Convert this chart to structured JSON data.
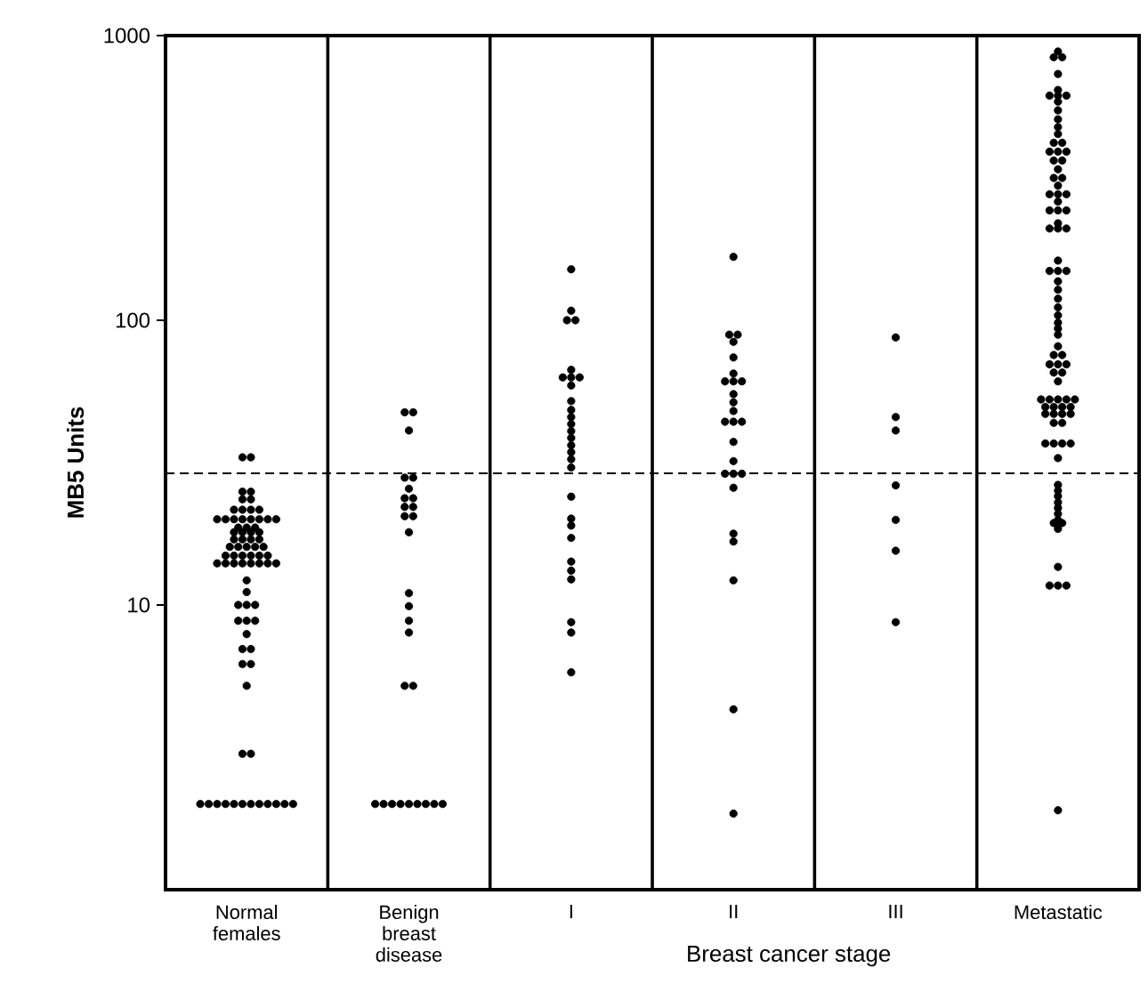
{
  "chart_data": {
    "type": "scatter",
    "xlabel": "Breast cancer stage",
    "ylabel": "MB5 Units",
    "log": "y",
    "marker": "circle",
    "categories": [
      "Normal females",
      "Benign breast disease",
      "I",
      "II",
      "III",
      "Metastatic"
    ],
    "ylim": [
      1,
      1000
    ],
    "yticks": [
      10,
      100,
      1000
    ],
    "ref_lines": [
      {
        "axis": "y",
        "value": 29,
        "line_style": "dashed",
        "color": "#000000"
      }
    ],
    "series": [
      {
        "color": "#000000",
        "x": [
          "Normal females",
          "Normal females",
          "Normal females",
          "Normal females",
          "Normal females",
          "Normal females",
          "Normal females",
          "Normal females",
          "Normal females",
          "Normal females",
          "Normal females",
          "Normal females",
          "Normal females",
          "Normal females",
          "Normal females",
          "Normal females",
          "Normal females",
          "Normal females",
          "Normal females",
          "Normal females",
          "Normal females",
          "Normal females",
          "Normal females",
          "Normal females",
          "Normal females",
          "Normal females",
          "Normal females",
          "Normal females",
          "Normal females",
          "Normal females",
          "Normal females",
          "Normal females",
          "Normal females",
          "Normal females",
          "Normal females",
          "Normal females",
          "Normal females",
          "Normal females",
          "Normal females",
          "Normal females",
          "Normal females",
          "Normal females",
          "Normal females",
          "Normal females",
          "Normal females",
          "Normal females",
          "Normal females",
          "Normal females",
          "Normal females",
          "Normal females",
          "Normal females",
          "Normal females",
          "Normal females",
          "Normal females",
          "Normal females",
          "Normal females",
          "Normal females",
          "Normal females",
          "Normal females",
          "Normal females",
          "Normal females",
          "Normal females",
          "Normal females",
          "Normal females",
          "Normal females",
          "Normal females",
          "Normal females",
          "Normal females",
          "Normal females",
          "Normal females",
          "Normal females",
          "Normal females",
          "Normal females",
          "Normal females",
          "Normal females",
          "Normal females"
        ],
        "values": [
          33,
          33,
          25,
          25,
          23.5,
          23.5,
          21.6,
          21.6,
          21.6,
          21.6,
          20,
          20,
          20,
          20,
          20,
          20,
          20,
          20,
          18.7,
          18.7,
          18.7,
          18,
          18,
          18,
          18,
          17,
          17,
          17,
          17,
          16,
          16,
          16,
          16,
          16,
          14.9,
          14.9,
          14.9,
          14.9,
          14.9,
          14.9,
          14,
          14,
          14,
          14,
          14,
          14,
          14,
          14,
          12.2,
          11.1,
          10,
          10,
          10,
          8.8,
          8.8,
          8.8,
          7.9,
          7,
          7,
          6.2,
          6.2,
          5.2,
          3,
          3,
          2,
          2,
          2,
          2,
          2,
          2,
          2,
          2,
          2,
          2,
          2,
          2
        ]
      },
      {
        "color": "#000000",
        "x": [
          "Benign breast disease",
          "Benign breast disease",
          "Benign breast disease",
          "Benign breast disease",
          "Benign breast disease",
          "Benign breast disease",
          "Benign breast disease",
          "Benign breast disease",
          "Benign breast disease",
          "Benign breast disease",
          "Benign breast disease",
          "Benign breast disease",
          "Benign breast disease",
          "Benign breast disease",
          "Benign breast disease",
          "Benign breast disease",
          "Benign breast disease",
          "Benign breast disease",
          "Benign breast disease",
          "Benign breast disease",
          "Benign breast disease",
          "Benign breast disease",
          "Benign breast disease",
          "Benign breast disease",
          "Benign breast disease",
          "Benign breast disease",
          "Benign breast disease",
          "Benign breast disease"
        ],
        "values": [
          47.5,
          47.5,
          41,
          28,
          28,
          25.6,
          23.7,
          23.7,
          22.1,
          22.1,
          20.5,
          20.5,
          18,
          11,
          9.9,
          8.8,
          8,
          5.2,
          5.2,
          2,
          2,
          2,
          2,
          2,
          2,
          2,
          2,
          2
        ]
      },
      {
        "color": "#000000",
        "x": [
          "I",
          "I",
          "I",
          "I",
          "I",
          "I",
          "I",
          "I",
          "I",
          "I",
          "I",
          "I",
          "I",
          "I",
          "I",
          "I",
          "I",
          "I",
          "I",
          "I",
          "I",
          "I",
          "I",
          "I",
          "I",
          "I",
          "I",
          "I",
          "I"
        ],
        "values": [
          151,
          108,
          100,
          100,
          67,
          63,
          63,
          63,
          59,
          52,
          48.4,
          45.7,
          43.2,
          40.8,
          38.6,
          36.4,
          34.4,
          32.5,
          30.4,
          24,
          20.1,
          19,
          17.2,
          14.2,
          13.2,
          12.3,
          8.7,
          8,
          5.8
        ]
      },
      {
        "color": "#000000",
        "x": [
          "II",
          "II",
          "II",
          "II",
          "II",
          "II",
          "II",
          "II",
          "II",
          "II",
          "II",
          "II",
          "II",
          "II",
          "II",
          "II",
          "II",
          "II",
          "II",
          "II",
          "II",
          "II",
          "II",
          "II",
          "II",
          "II"
        ],
        "values": [
          167,
          89,
          89,
          84,
          74,
          65,
          61,
          61,
          61,
          55,
          51.5,
          48,
          44,
          44,
          44,
          37.4,
          32,
          28.9,
          28.9,
          28.9,
          25.8,
          17.8,
          16.7,
          12.2,
          4.3,
          1.85
        ]
      },
      {
        "color": "#000000",
        "x": [
          "III",
          "III",
          "III",
          "III",
          "III",
          "III",
          "III"
        ],
        "values": [
          87,
          45.7,
          41,
          26.3,
          19.9,
          15.5,
          8.7
        ]
      },
      {
        "color": "#000000",
        "x": [
          "Metastatic",
          "Metastatic",
          "Metastatic",
          "Metastatic",
          "Metastatic",
          "Metastatic",
          "Metastatic",
          "Metastatic",
          "Metastatic",
          "Metastatic",
          "Metastatic",
          "Metastatic",
          "Metastatic",
          "Metastatic",
          "Metastatic",
          "Metastatic",
          "Metastatic",
          "Metastatic",
          "Metastatic",
          "Metastatic",
          "Metastatic",
          "Metastatic",
          "Metastatic",
          "Metastatic",
          "Metastatic",
          "Metastatic",
          "Metastatic",
          "Metastatic",
          "Metastatic",
          "Metastatic",
          "Metastatic",
          "Metastatic",
          "Metastatic",
          "Metastatic",
          "Metastatic",
          "Metastatic",
          "Metastatic",
          "Metastatic",
          "Metastatic",
          "Metastatic",
          "Metastatic",
          "Metastatic",
          "Metastatic",
          "Metastatic",
          "Metastatic",
          "Metastatic",
          "Metastatic",
          "Metastatic",
          "Metastatic",
          "Metastatic",
          "Metastatic",
          "Metastatic",
          "Metastatic",
          "Metastatic",
          "Metastatic",
          "Metastatic",
          "Metastatic",
          "Metastatic",
          "Metastatic",
          "Metastatic",
          "Metastatic",
          "Metastatic",
          "Metastatic",
          "Metastatic",
          "Metastatic",
          "Metastatic",
          "Metastatic",
          "Metastatic",
          "Metastatic",
          "Metastatic",
          "Metastatic",
          "Metastatic",
          "Metastatic",
          "Metastatic",
          "Metastatic",
          "Metastatic",
          "Metastatic",
          "Metastatic",
          "Metastatic",
          "Metastatic",
          "Metastatic",
          "Metastatic",
          "Metastatic",
          "Metastatic",
          "Metastatic",
          "Metastatic",
          "Metastatic",
          "Metastatic",
          "Metastatic",
          "Metastatic",
          "Metastatic",
          "Metastatic"
        ],
        "values": [
          879,
          839,
          839,
          733,
          644,
          615,
          615,
          615,
          586,
          546,
          508,
          477,
          451,
          420,
          420,
          391,
          391,
          391,
          364,
          364,
          339,
          316,
          316,
          297,
          277,
          277,
          277,
          261,
          243,
          243,
          243,
          219,
          210,
          210,
          210,
          162,
          149,
          149,
          149,
          137,
          128,
          119,
          111,
          104,
          98,
          93.5,
          89,
          81,
          75.5,
          75.5,
          70,
          70,
          70,
          65.5,
          65.5,
          61,
          52.7,
          52.7,
          52.7,
          52.7,
          52.7,
          49.6,
          49.6,
          49.6,
          49.6,
          46.9,
          46.9,
          46.9,
          46.9,
          43.6,
          43.6,
          36.9,
          36.9,
          36.9,
          36.9,
          32.8,
          26.4,
          25.2,
          24.1,
          22.9,
          21.9,
          20.9,
          19.9,
          19.4,
          19.4,
          19,
          18.5,
          13.6,
          11.7,
          11.7,
          11.7,
          1.9
        ]
      }
    ]
  }
}
